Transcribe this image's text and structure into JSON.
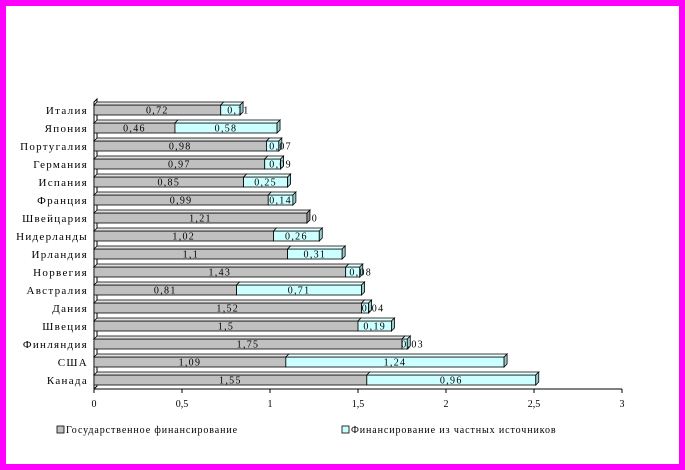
{
  "chart_data": {
    "type": "bar",
    "orientation": "horizontal",
    "stacked": true,
    "categories": [
      "Италия",
      "Япония",
      "Португалия",
      "Германия",
      "Испания",
      "Франция",
      "Швейцария",
      "Нидерланды",
      "Ирландия",
      "Норвегия",
      "Австралия",
      "Дания",
      "Швеция",
      "Финляндия",
      "США",
      "Канада"
    ],
    "series": [
      {
        "name": "Государственное финансирование",
        "color": "#c0c0c0",
        "values": [
          0.72,
          0.46,
          0.98,
          0.97,
          0.85,
          0.99,
          1.21,
          1.02,
          1.1,
          1.43,
          0.81,
          1.52,
          1.5,
          1.75,
          1.09,
          1.55
        ],
        "labels": [
          "0,72",
          "0,46",
          "0,98",
          "0,97",
          "0,85",
          "0,99",
          "1,21",
          "1,02",
          "1,1",
          "1,43",
          "0,81",
          "1,52",
          "1,5",
          "1,75",
          "1,09",
          "1,55"
        ]
      },
      {
        "name": "Финансирование из частных источников",
        "color": "#ccffff",
        "values": [
          0.11,
          0.58,
          0.07,
          0.09,
          0.25,
          0.14,
          0,
          0.26,
          0.31,
          0.08,
          0.71,
          0.04,
          0.19,
          0.03,
          1.24,
          0.96
        ],
        "labels": [
          "0,11",
          "0,58",
          "0,07",
          "0,09",
          "0,25",
          "0,14",
          "0",
          "0,26",
          "0,31",
          "0,08",
          "0,71",
          "0,04",
          "0,19",
          "0,03",
          "1,24",
          "0,96"
        ]
      }
    ],
    "xlim": [
      0,
      3
    ],
    "xticks": [
      0,
      0.5,
      1,
      1.5,
      2,
      2.5,
      3
    ],
    "xtick_labels": [
      "0",
      "0,5",
      "1",
      "1,5",
      "2",
      "2,5",
      "3"
    ],
    "legend_position": "bottom",
    "grid": false
  },
  "colors": {
    "frame": "#ff00ff",
    "gov": "#c0c0c0",
    "private": "#ccffff"
  }
}
